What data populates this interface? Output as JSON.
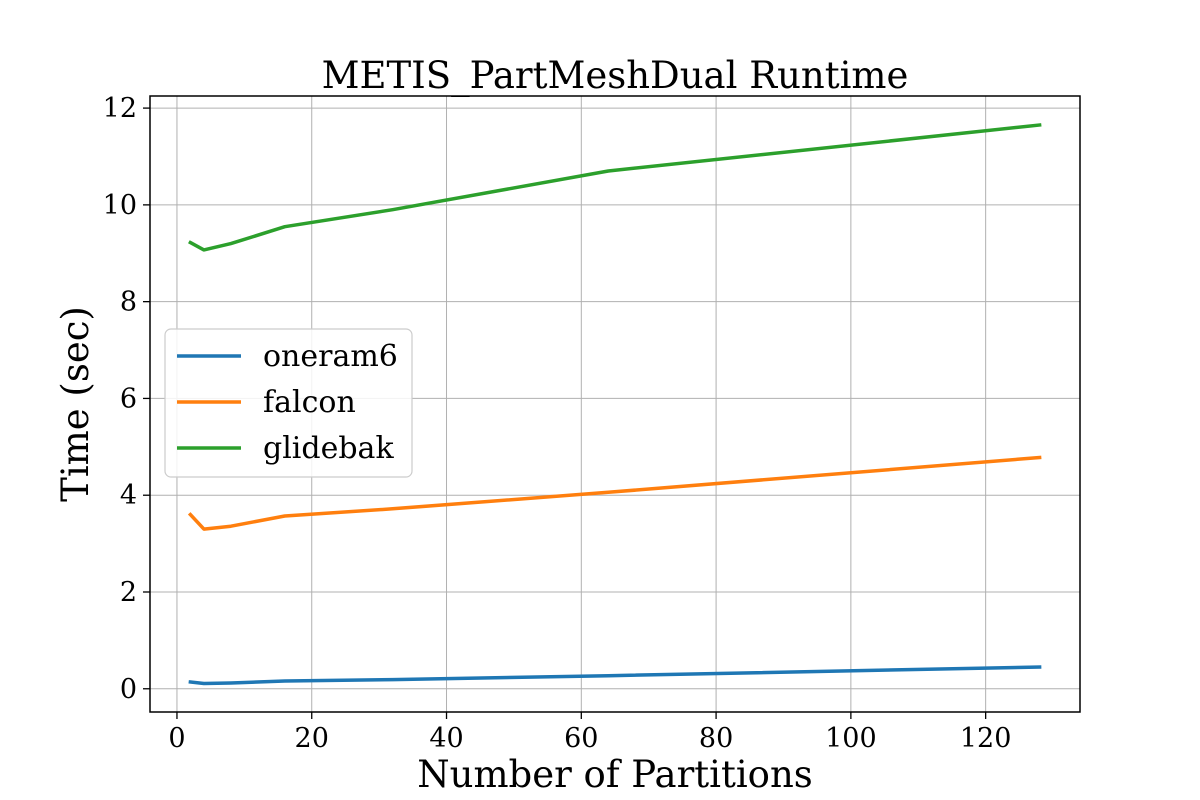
{
  "chart_data": {
    "type": "line",
    "title": "METIS_PartMeshDual Runtime",
    "xlabel": "Number of Partitions",
    "ylabel": "Time (sec)",
    "xlim": [
      -4,
      134
    ],
    "ylim": [
      -0.48,
      12.25
    ],
    "xticks": [
      0,
      20,
      40,
      60,
      80,
      100,
      120
    ],
    "yticks": [
      0,
      2,
      4,
      6,
      8,
      10,
      12
    ],
    "grid": true,
    "legend_position": "center-left",
    "x": [
      2,
      4,
      8,
      16,
      32,
      64,
      128
    ],
    "series": [
      {
        "name": "oneram6",
        "color": "#1f77b4",
        "values": [
          0.14,
          0.11,
          0.12,
          0.16,
          0.19,
          0.27,
          0.45
        ]
      },
      {
        "name": "falcon",
        "color": "#ff7f0e",
        "values": [
          3.6,
          3.3,
          3.36,
          3.57,
          3.72,
          4.06,
          4.78
        ]
      },
      {
        "name": "glidebak",
        "color": "#2ca02c",
        "values": [
          9.22,
          9.07,
          9.2,
          9.55,
          9.9,
          10.7,
          11.65
        ]
      }
    ]
  }
}
